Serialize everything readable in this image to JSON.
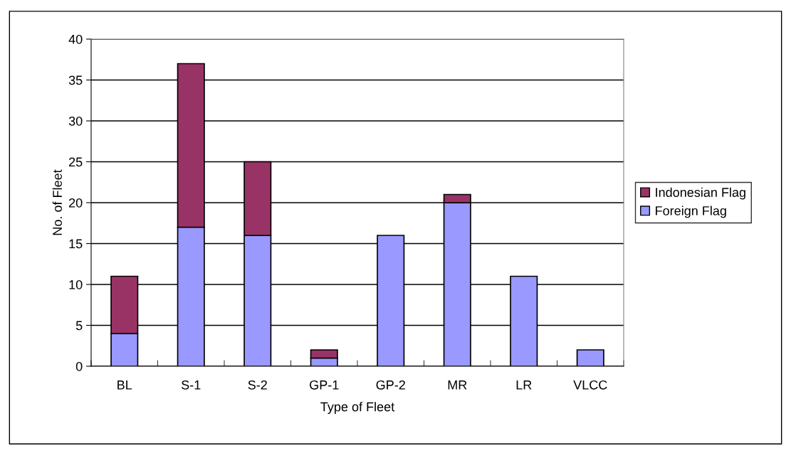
{
  "chart_data": {
    "type": "bar",
    "stacked": true,
    "xlabel": "Type of Fleet",
    "ylabel": "No. of Fleet",
    "categories": [
      "BL",
      "S-1",
      "S-2",
      "GP-1",
      "GP-2",
      "MR",
      "LR",
      "VLCC"
    ],
    "series": [
      {
        "name": "Foreign Flag",
        "color": "#9999ff",
        "values": [
          4,
          17,
          16,
          1,
          16,
          20,
          11,
          2
        ]
      },
      {
        "name": "Indonesian Flag",
        "color": "#993366",
        "values": [
          7,
          20,
          9,
          1,
          0,
          1,
          0,
          0
        ]
      }
    ],
    "ylim": [
      0,
      40
    ],
    "yticks": [
      0,
      5,
      10,
      15,
      20,
      25,
      30,
      35,
      40
    ],
    "grid": "y",
    "legend": "right"
  }
}
